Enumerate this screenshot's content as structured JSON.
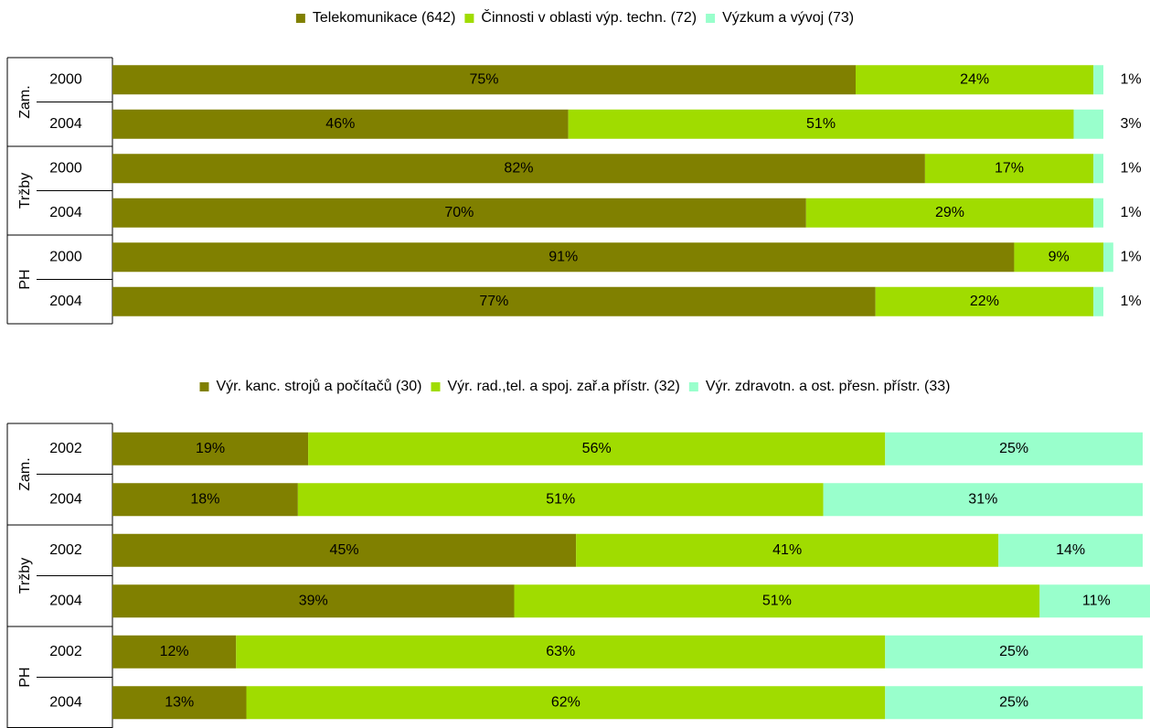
{
  "chart_data": [
    {
      "type": "stacked_bar_horizontal",
      "groups": [
        "Zam.",
        "Tržby",
        "PH"
      ],
      "categories": [
        "2000",
        "2004",
        "2000",
        "2004",
        "2000",
        "2004"
      ],
      "series": [
        {
          "name": "Telekomunikace (642)",
          "color": "#808000",
          "values": [
            75,
            46,
            82,
            70,
            91,
            77
          ],
          "value_labels": [
            "75%",
            "46%",
            "82%",
            "70%",
            "91%",
            "77%"
          ]
        },
        {
          "name": "Činnosti v oblasti výp. techn. (72)",
          "color": "#a0dc00",
          "values": [
            24,
            51,
            17,
            29,
            9,
            22
          ],
          "value_labels": [
            "24%",
            "51%",
            "17%",
            "29%",
            "9%",
            "22%"
          ]
        },
        {
          "name": "Výzkum a vývoj (73)",
          "color": "#99ffcc",
          "values": [
            1,
            3,
            1,
            1,
            1,
            1
          ],
          "value_labels": [
            "1%",
            "3%",
            "1%",
            "1%",
            "1%",
            "1%"
          ]
        }
      ],
      "xlim": [
        0,
        100
      ],
      "legend": "top"
    },
    {
      "type": "stacked_bar_horizontal",
      "groups": [
        "Zam.",
        "Tržby",
        "PH"
      ],
      "categories": [
        "2002",
        "2004",
        "2002",
        "2004",
        "2002",
        "2004"
      ],
      "series": [
        {
          "name": "Výr. kanc. strojů a počítačů (30)",
          "color": "#808000",
          "values": [
            19,
            18,
            45,
            39,
            12,
            13
          ],
          "value_labels": [
            "19%",
            "18%",
            "45%",
            "39%",
            "12%",
            "13%"
          ]
        },
        {
          "name": "Výr. rad.,tel. a spoj. zař.a přístr. (32)",
          "color": "#a0dc00",
          "values": [
            56,
            51,
            41,
            51,
            63,
            62
          ],
          "value_labels": [
            "56%",
            "51%",
            "41%",
            "51%",
            "63%",
            "62%"
          ]
        },
        {
          "name": "Výr. zdravotn. a ost. přesn. přístr. (33)",
          "color": "#99ffcc",
          "values": [
            25,
            31,
            14,
            11,
            25,
            25
          ],
          "value_labels": [
            "25%",
            "31%",
            "14%",
            "11%",
            "25%",
            "25%"
          ]
        }
      ],
      "xlim": [
        0,
        100
      ],
      "legend": "top"
    }
  ]
}
